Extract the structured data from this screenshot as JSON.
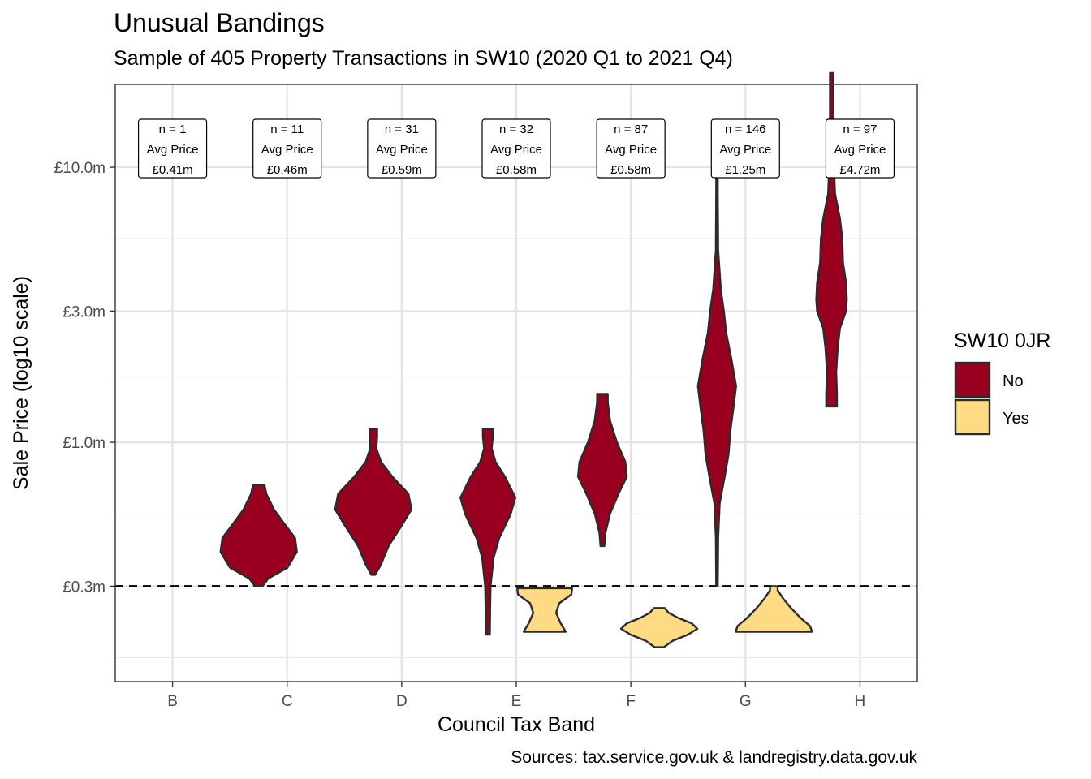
{
  "chart_data": {
    "type": "violin",
    "title": "Unusual Bandings",
    "subtitle": "Sample of 405 Property Transactions in SW10 (2020 Q1 to 2021 Q4)",
    "caption": "Sources: tax.service.gov.uk & landregistry.data.gov.uk",
    "xlabel": "Council Tax Band",
    "ylabel": "Sale Price (log10 scale)",
    "y_scale": "log10",
    "y_unit": "£m",
    "ylim": [
      0.135,
      20.0
    ],
    "y_ticks": [
      0.3,
      1.0,
      3.0,
      10.0
    ],
    "y_tick_labels": [
      "£0.3m",
      "£1.0m",
      "£3.0m",
      "£10.0m"
    ],
    "y_minor_ticks": [
      0.165,
      0.55,
      1.73,
      5.5
    ],
    "categories": [
      "B",
      "C",
      "D",
      "E",
      "F",
      "G",
      "H"
    ],
    "reference_line": {
      "y": 0.3,
      "style": "dashed"
    },
    "grid": true,
    "legend": {
      "title": "SW10 0JR",
      "position": "right",
      "entries": [
        {
          "label": "No",
          "color": "#99001f"
        },
        {
          "label": "Yes",
          "color": "#fedb82"
        }
      ]
    },
    "series": [
      {
        "name": "No",
        "color": "#99001f",
        "violins": [
          {
            "category": "C",
            "min": 0.3,
            "max": 0.7,
            "profile": [
              [
                0.3,
                0.1
              ],
              [
                0.32,
                0.25
              ],
              [
                0.35,
                0.75
              ],
              [
                0.4,
                1.0
              ],
              [
                0.45,
                0.95
              ],
              [
                0.5,
                0.7
              ],
              [
                0.57,
                0.4
              ],
              [
                0.65,
                0.2
              ],
              [
                0.7,
                0.15
              ]
            ]
          },
          {
            "category": "D",
            "min": 0.33,
            "max": 1.12,
            "profile": [
              [
                0.33,
                0.05
              ],
              [
                0.36,
                0.2
              ],
              [
                0.42,
                0.4
              ],
              [
                0.5,
                0.75
              ],
              [
                0.57,
                1.0
              ],
              [
                0.65,
                0.92
              ],
              [
                0.75,
                0.5
              ],
              [
                0.85,
                0.2
              ],
              [
                0.95,
                0.08
              ],
              [
                1.05,
                0.1
              ],
              [
                1.12,
                0.1
              ]
            ]
          },
          {
            "category": "E",
            "min": 0.2,
            "max": 1.12,
            "profile": [
              [
                0.2,
                0.05
              ],
              [
                0.25,
                0.06
              ],
              [
                0.3,
                0.07
              ],
              [
                0.38,
                0.15
              ],
              [
                0.45,
                0.3
              ],
              [
                0.55,
                0.6
              ],
              [
                0.63,
                0.72
              ],
              [
                0.75,
                0.45
              ],
              [
                0.85,
                0.2
              ],
              [
                0.95,
                0.1
              ],
              [
                1.05,
                0.13
              ],
              [
                1.12,
                0.13
              ]
            ]
          },
          {
            "category": "F",
            "min": 0.42,
            "max": 1.5,
            "profile": [
              [
                0.42,
                0.05
              ],
              [
                0.47,
                0.08
              ],
              [
                0.55,
                0.2
              ],
              [
                0.65,
                0.42
              ],
              [
                0.75,
                0.64
              ],
              [
                0.85,
                0.6
              ],
              [
                1.0,
                0.38
              ],
              [
                1.2,
                0.2
              ],
              [
                1.4,
                0.14
              ],
              [
                1.5,
                0.14
              ]
            ]
          },
          {
            "category": "G",
            "min": 0.3,
            "max": 11.5,
            "profile": [
              [
                0.3,
                0.02
              ],
              [
                0.45,
                0.03
              ],
              [
                0.6,
                0.07
              ],
              [
                0.75,
                0.2
              ],
              [
                0.9,
                0.3
              ],
              [
                1.1,
                0.35
              ],
              [
                1.3,
                0.42
              ],
              [
                1.6,
                0.5
              ],
              [
                2.0,
                0.38
              ],
              [
                2.5,
                0.24
              ],
              [
                3.0,
                0.18
              ],
              [
                3.6,
                0.1
              ],
              [
                5.0,
                0.03
              ],
              [
                8.0,
                0.02
              ],
              [
                11.5,
                0.02
              ]
            ]
          },
          {
            "category": "H",
            "min": 1.35,
            "max": 22.0,
            "profile": [
              [
                1.35,
                0.14
              ],
              [
                1.5,
                0.14
              ],
              [
                1.8,
                0.12
              ],
              [
                2.2,
                0.16
              ],
              [
                2.6,
                0.22
              ],
              [
                3.0,
                0.38
              ],
              [
                3.3,
                0.4
              ],
              [
                3.8,
                0.38
              ],
              [
                4.5,
                0.3
              ],
              [
                5.5,
                0.28
              ],
              [
                6.5,
                0.22
              ],
              [
                8.0,
                0.09
              ],
              [
                11.0,
                0.05
              ],
              [
                16.0,
                0.04
              ],
              [
                22.0,
                0.04
              ]
            ]
          }
        ]
      },
      {
        "name": "Yes",
        "color": "#fedb82",
        "violins": [
          {
            "category": "E",
            "min": 0.205,
            "max": 0.295,
            "profile": [
              [
                0.205,
                0.55
              ],
              [
                0.22,
                0.42
              ],
              [
                0.24,
                0.3
              ],
              [
                0.26,
                0.38
              ],
              [
                0.28,
                0.7
              ],
              [
                0.295,
                0.72
              ]
            ]
          },
          {
            "category": "F",
            "min": 0.18,
            "max": 0.25,
            "profile": [
              [
                0.18,
                0.12
              ],
              [
                0.19,
                0.35
              ],
              [
                0.2,
                0.75
              ],
              [
                0.21,
                1.0
              ],
              [
                0.22,
                0.85
              ],
              [
                0.23,
                0.5
              ],
              [
                0.24,
                0.25
              ],
              [
                0.25,
                0.14
              ]
            ]
          },
          {
            "category": "G",
            "min": 0.205,
            "max": 0.3,
            "profile": [
              [
                0.205,
                1.0
              ],
              [
                0.215,
                0.95
              ],
              [
                0.23,
                0.7
              ],
              [
                0.25,
                0.45
              ],
              [
                0.27,
                0.25
              ],
              [
                0.29,
                0.1
              ],
              [
                0.3,
                0.1
              ]
            ]
          }
        ]
      }
    ],
    "annotations": [
      {
        "category": "B",
        "lines": [
          "n = 1",
          "Avg Price",
          "£0.41m"
        ]
      },
      {
        "category": "C",
        "lines": [
          "n = 11",
          "Avg Price",
          "£0.46m"
        ]
      },
      {
        "category": "D",
        "lines": [
          "n = 31",
          "Avg Price",
          "£0.59m"
        ]
      },
      {
        "category": "E",
        "lines": [
          "n = 32",
          "Avg Price",
          "£0.58m"
        ]
      },
      {
        "category": "F",
        "lines": [
          "n = 87",
          "Avg Price",
          "£0.58m"
        ]
      },
      {
        "category": "G",
        "lines": [
          "n = 146",
          "Avg Price",
          "£1.25m"
        ]
      },
      {
        "category": "H",
        "lines": [
          "n = 97",
          "Avg Price",
          "£4.72m"
        ]
      }
    ]
  }
}
